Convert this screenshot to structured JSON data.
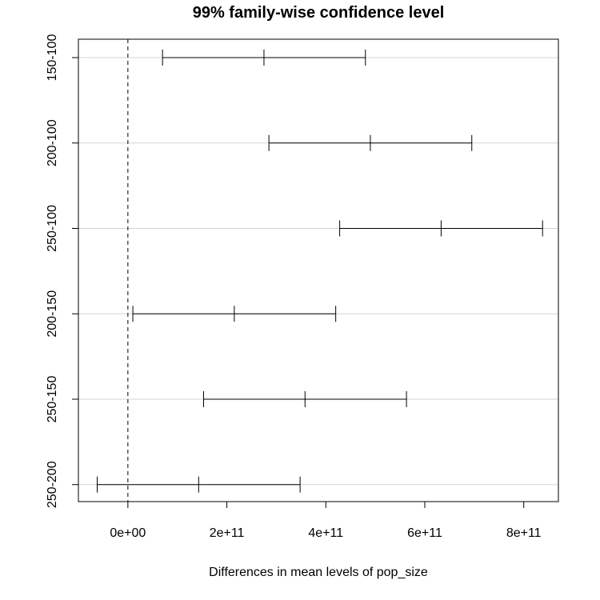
{
  "chart_data": {
    "type": "errorbar",
    "title": "99% family-wise confidence level",
    "xlabel": "Differences in mean levels of pop_size",
    "ylabel": "",
    "xlim": [
      -100000000000.0,
      870000000000.0
    ],
    "x_ticks": [
      {
        "value": 0,
        "label": "0e+00"
      },
      {
        "value": 200000000000.0,
        "label": "2e+11"
      },
      {
        "value": 400000000000.0,
        "label": "4e+11"
      },
      {
        "value": 600000000000.0,
        "label": "6e+11"
      },
      {
        "value": 800000000000.0,
        "label": "8e+11"
      }
    ],
    "reference_line": 0,
    "grid": "horizontal",
    "comparisons": [
      {
        "label": "150-100",
        "lower": 70000000000.0,
        "estimate": 275000000000.0,
        "upper": 480000000000.0
      },
      {
        "label": "200-100",
        "lower": 285000000000.0,
        "estimate": 490000000000.0,
        "upper": 695000000000.0
      },
      {
        "label": "250-100",
        "lower": 428000000000.0,
        "estimate": 633000000000.0,
        "upper": 838000000000.0
      },
      {
        "label": "200-150",
        "lower": 10000000000.0,
        "estimate": 215000000000.0,
        "upper": 420000000000.0
      },
      {
        "label": "250-150",
        "lower": 153000000000.0,
        "estimate": 358000000000.0,
        "upper": 563000000000.0
      },
      {
        "label": "250-200",
        "lower": -62000000000.0,
        "estimate": 143000000000.0,
        "upper": 348000000000.0
      }
    ]
  }
}
